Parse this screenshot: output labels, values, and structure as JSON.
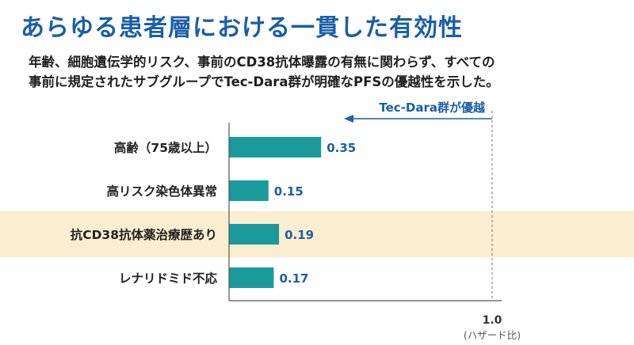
{
  "slide": {
    "title": "あらゆる患者層における一貫した有効性",
    "subtitle_line1": "年齢、細胞遺伝学的リスク、事前のCD38抗体曝露の有無に関わらず、すべての",
    "subtitle_line2": "事前に規定されたサブグループでTec-Dara群が明確なPFSの優越性を示した。"
  },
  "chart_data": {
    "type": "bar",
    "orientation": "horizontal",
    "categories": [
      "高齢（75歳以上）",
      "高リスク染色体異常",
      "抗CD38抗体薬治療歴あり",
      "レナリドミド不応"
    ],
    "values": [
      0.35,
      0.15,
      0.19,
      0.17
    ],
    "value_labels": [
      "0.35",
      "0.15",
      "0.19",
      "0.17"
    ],
    "highlighted_category": "抗CD38抗体薬治療歴あり",
    "reference_line": {
      "value": 1.0,
      "label": "1.0",
      "style": "dashed"
    },
    "xlabel": "(ハザード比)",
    "xlim": [
      0,
      1.0
    ],
    "direction_annotation": "Tec-Dara群が優越",
    "colors": {
      "bar": "#1a9a9b",
      "value_label": "#1b5fa6",
      "highlight_band": "#fbedd0",
      "arrow": "#1b5fa6",
      "axis": "#555555",
      "reference_line": "#888888"
    }
  }
}
